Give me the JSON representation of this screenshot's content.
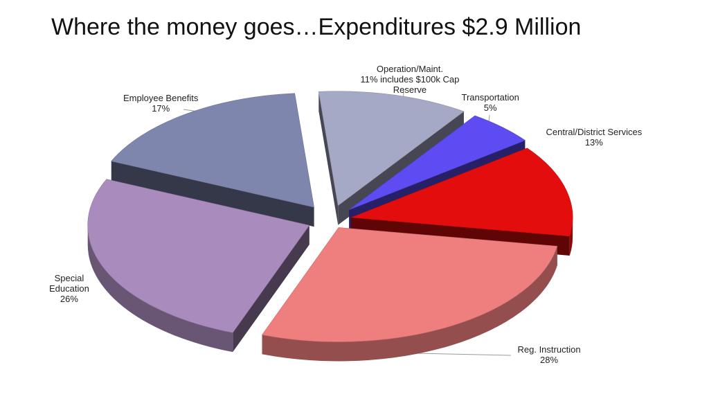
{
  "title": "Where the money goes…Expenditures $2.9 Million",
  "chart_data": {
    "type": "pie",
    "style": "3d-exploded",
    "slices": [
      {
        "name": "Operation/Maint.",
        "label_lines": [
          "Operation/Maint.",
          "11% includes $100k Cap",
          "Reserve"
        ],
        "value": 11,
        "color": "#a6a9c6"
      },
      {
        "name": "Transportation",
        "label_lines": [
          "Transportation",
          "5%"
        ],
        "value": 5,
        "color": "#5c4cf2"
      },
      {
        "name": "Central/District Services",
        "label_lines": [
          "Central/District Services",
          "13%"
        ],
        "value": 13,
        "color": "#e30d0d"
      },
      {
        "name": "Reg. Instruction",
        "label_lines": [
          "Reg. Instruction",
          "28%"
        ],
        "value": 28,
        "color": "#ef7e7e"
      },
      {
        "name": "Special Education",
        "label_lines": [
          "Special",
          "Education",
          "26%"
        ],
        "value": 26,
        "color": "#a98bbd"
      },
      {
        "name": "Employee Benefits",
        "label_lines": [
          "Employee Benefits",
          "17%"
        ],
        "value": 17,
        "color": "#7f86ad"
      }
    ]
  }
}
